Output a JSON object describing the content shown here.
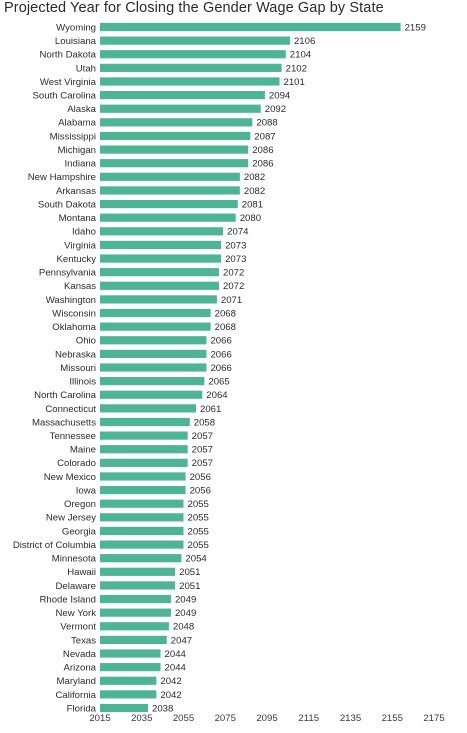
{
  "chart_data": {
    "type": "bar",
    "orientation": "horizontal",
    "title": "Projected Year for Closing the Gender Wage Gap by State",
    "xlabel": "",
    "ylabel": "",
    "xlim": [
      2015,
      2175
    ],
    "xticks": [
      2015,
      2035,
      2055,
      2075,
      2095,
      2115,
      2135,
      2155,
      2175
    ],
    "grid": false,
    "bar_color": "#4db593",
    "categories": [
      "Wyoming",
      "Louisiana",
      "North Dakota",
      "Utah",
      "West Virginia",
      "South Carolina",
      "Alaska",
      "Alabama",
      "Mississippi",
      "Michigan",
      "Indiana",
      "New Hampshire",
      "Arkansas",
      "South Dakota",
      "Montana",
      "Idaho",
      "Virginia",
      "Kentucky",
      "Pennsylvania",
      "Kansas",
      "Washington",
      "Wisconsin",
      "Oklahoma",
      "Ohio",
      "Nebraska",
      "Missouri",
      "Illinois",
      "North Carolina",
      "Connecticut",
      "Massachusetts",
      "Tennessee",
      "Maine",
      "Colorado",
      "New Mexico",
      "Iowa",
      "Oregon",
      "New Jersey",
      "Georgia",
      "District of Columbia",
      "Minnesota",
      "Hawaii",
      "Delaware",
      "Rhode Island",
      "New York",
      "Vermont",
      "Texas",
      "Nevada",
      "Arizona",
      "Maryland",
      "California",
      "Florida"
    ],
    "values": [
      2159,
      2106,
      2104,
      2102,
      2101,
      2094,
      2092,
      2088,
      2087,
      2086,
      2086,
      2082,
      2082,
      2081,
      2080,
      2074,
      2073,
      2073,
      2072,
      2072,
      2071,
      2068,
      2068,
      2066,
      2066,
      2066,
      2065,
      2064,
      2061,
      2058,
      2057,
      2057,
      2057,
      2056,
      2056,
      2055,
      2055,
      2055,
      2055,
      2054,
      2051,
      2051,
      2049,
      2049,
      2048,
      2047,
      2044,
      2044,
      2042,
      2042,
      2038
    ]
  }
}
